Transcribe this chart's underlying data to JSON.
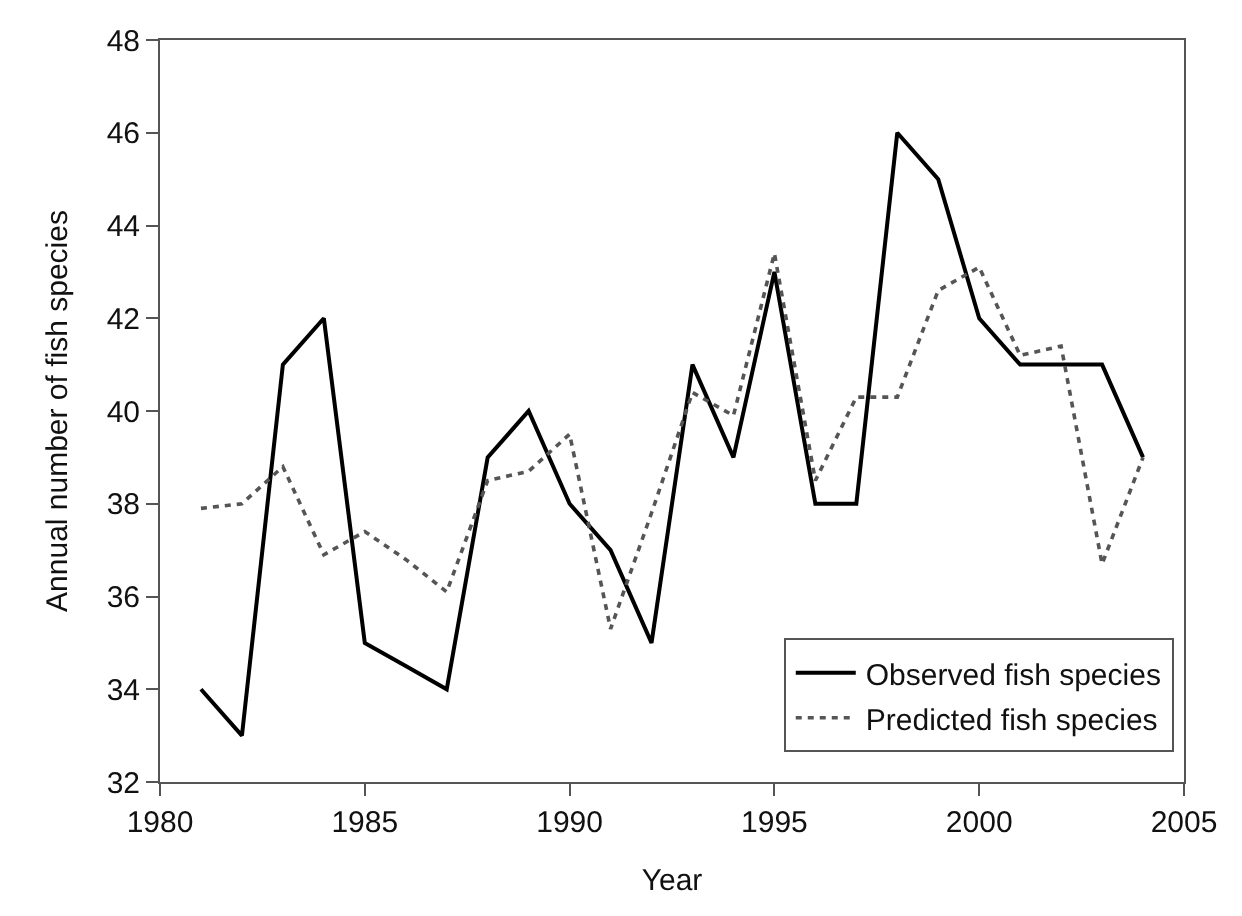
{
  "chart_data": {
    "type": "line",
    "xlabel": "Year",
    "ylabel": "Annual number of fish species",
    "x": [
      1981,
      1982,
      1983,
      1984,
      1985,
      1986,
      1987,
      1988,
      1989,
      1990,
      1991,
      1992,
      1993,
      1994,
      1995,
      1996,
      1997,
      1998,
      1999,
      2000,
      2001,
      2002,
      2003,
      2004
    ],
    "series": [
      {
        "name": "Observed fish species",
        "color": "#000000",
        "line_style": "solid",
        "values": [
          34,
          33,
          41,
          42,
          35,
          34.5,
          34,
          39,
          40,
          38,
          37,
          35,
          41,
          39,
          43,
          38,
          38,
          46,
          45,
          42,
          41,
          41,
          41,
          39
        ]
      },
      {
        "name": "Predicted fish species",
        "color": "#555555",
        "line_style": "dotted",
        "values": [
          37.9,
          38,
          38.8,
          36.9,
          37.4,
          36.8,
          36.1,
          38.5,
          38.7,
          39.5,
          35.3,
          37.8,
          40.4,
          39.9,
          43.4,
          38.5,
          40.3,
          40.3,
          42.6,
          43.1,
          41.2,
          41.4,
          36.7,
          39
        ]
      }
    ],
    "xlim": [
      1980,
      2005
    ],
    "xticks": [
      1980,
      1985,
      1990,
      1995,
      2000,
      2005
    ],
    "ylim": [
      32,
      48
    ],
    "yticks": [
      32,
      34,
      36,
      38,
      40,
      42,
      44,
      46,
      48
    ],
    "legend": "bottom right",
    "marker": "none"
  }
}
